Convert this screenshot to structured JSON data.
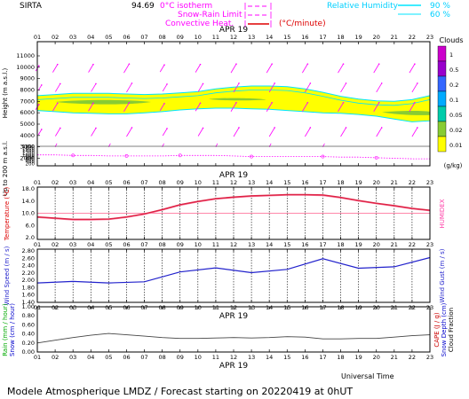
{
  "header": {
    "station": "SIRTA",
    "coords": "94.69",
    "zero_isotherm": "0°C isotherm",
    "snow_rain_limit": "Snow-Rain Limit",
    "convective_heat": "Convective Heat.",
    "convective_unit": "(°C/minute)",
    "rh_label": "Relative Humidity",
    "rh_90": "90 %",
    "rh_60": "60 %"
  },
  "footer": {
    "model": "Modele Atmospherique LMDZ / Forecast starting on 20220419 at 0hUT",
    "universal_time": "Universal Time"
  },
  "colors": {
    "cloud_yellow": "#ffff00",
    "cloud_green": "#88cc33",
    "rh_cyan": "#00e5ff",
    "wind_magenta": "#ff00ff",
    "temperature": "#dd2244",
    "humidex": "#ff88aa",
    "wind": "#2222cc",
    "rain": "#444444",
    "isotherm": "#ff00ff"
  },
  "date_label": "APR 19",
  "hours": [
    "01",
    "02",
    "03",
    "04",
    "05",
    "06",
    "07",
    "08",
    "09",
    "10",
    "11",
    "12",
    "13",
    "14",
    "15",
    "16",
    "17",
    "18",
    "19",
    "20",
    "21",
    "22",
    "23"
  ],
  "chart_data": [
    {
      "type": "heatmap",
      "panel": "clouds",
      "ylabel": "Height (m a.s.l.)",
      "ylabel2": "Up to 200 m a.s.l.",
      "y_ticks_upper": [
        "11000",
        "10000",
        "9000",
        "8000",
        "7000",
        "6000",
        "5000",
        "4000",
        "3000",
        "2000"
      ],
      "y_ticks_lower": [
        "1800",
        "1600",
        "1400",
        "1200",
        "1000",
        "800",
        "600",
        "400",
        "200"
      ],
      "legend_title": "Clouds",
      "legend_unit": "(g/kg)",
      "legend_ticks": [
        "1",
        "0.5",
        "0.2",
        "0.1",
        "0.05",
        "0.02",
        "0.01"
      ],
      "legend_colors": [
        "#cc00cc",
        "#9900cc",
        "#3366ff",
        "#00aaff",
        "#00ccaa",
        "#88cc33",
        "#ffff00"
      ],
      "cloud_top_m": [
        7500,
        7600,
        7700,
        7700,
        7700,
        7650,
        7600,
        7650,
        7750,
        7850,
        8100,
        8250,
        8350,
        8350,
        8300,
        8100,
        7800,
        7450,
        7200,
        7050,
        7000,
        7150,
        7500
      ],
      "cloud_base_m": [
        6200,
        6100,
        6000,
        5950,
        5900,
        5900,
        6000,
        6100,
        6250,
        6350,
        6400,
        6400,
        6350,
        6300,
        6200,
        6100,
        6000,
        5950,
        5850,
        5700,
        5450,
        5200,
        5300
      ],
      "isotherm_m": [
        2300,
        2300,
        2250,
        2250,
        2200,
        2200,
        2200,
        2200,
        2250,
        2250,
        2250,
        2200,
        2150,
        2150,
        2150,
        2150,
        2150,
        2100,
        2100,
        2050,
        2000,
        1950,
        1950
      ]
    },
    {
      "type": "line",
      "panel": "temperature",
      "ylabel": "Temperature (°C)",
      "ylabel2": "HUMIDEX",
      "y_ticks": [
        "18.0",
        "14.0",
        "10.0",
        "6.0",
        "2.0"
      ],
      "ylim": [
        2,
        18
      ],
      "x": [
        1,
        2,
        3,
        4,
        5,
        6,
        7,
        8,
        9,
        10,
        11,
        12,
        13,
        14,
        15,
        16,
        17,
        18,
        19,
        20,
        21,
        22,
        23
      ],
      "series": [
        {
          "values": [
            8.8,
            8.4,
            8.0,
            8.0,
            8.1,
            8.8,
            9.8,
            11.2,
            12.8,
            13.9,
            14.8,
            15.3,
            15.7,
            15.9,
            16.1,
            16.1,
            16.0,
            15.2,
            14.2,
            13.3,
            12.5,
            11.6,
            11.0
          ]
        },
        {
          "values": [
            8.6,
            8.2,
            7.8,
            7.8,
            7.9,
            8.6,
            9.6,
            11.0,
            12.6,
            13.7,
            14.6,
            15.1,
            15.5,
            15.7,
            15.9,
            15.9,
            15.8,
            15.0,
            14.0,
            13.1,
            12.3,
            11.4,
            10.8
          ]
        }
      ]
    },
    {
      "type": "line",
      "panel": "wind",
      "ylabel": "Wind Speed (m / s)",
      "ylabel2": "Wind Gust (m / s)",
      "y_ticks": [
        "2.80",
        "2.60",
        "2.40",
        "2.20",
        "2.00",
        "1.80",
        "1.60",
        "1.40"
      ],
      "ylim": [
        1.4,
        2.85
      ],
      "x": [
        1,
        3,
        5,
        7,
        9,
        11,
        13,
        15,
        17,
        19,
        21,
        23
      ],
      "series": [
        {
          "values": [
            1.93,
            1.97,
            1.93,
            1.96,
            2.23,
            2.34,
            2.21,
            2.3,
            2.59,
            2.33,
            2.37,
            2.62
          ]
        }
      ]
    },
    {
      "type": "line",
      "panel": "rain",
      "ylabel": "Rain (mm / hour)",
      "ylabel2": "Snow (cm / hour)",
      "ylabel3": "CAPE (J / g)",
      "ylabel4": "Snow Depth (cm)",
      "ylabel5": "Cloud Fraction",
      "y_ticks": [
        "1.00",
        "0.80",
        "0.60",
        "0.40",
        "0.20",
        "0.00"
      ],
      "ylim": [
        0,
        1.0
      ],
      "x": [
        1,
        2,
        3,
        4,
        5,
        6,
        7,
        8,
        9,
        10,
        11,
        12,
        13,
        14,
        15,
        16,
        17,
        18,
        19,
        20,
        21,
        22,
        23
      ],
      "series": [
        {
          "values": [
            0.2,
            0.26,
            0.32,
            0.37,
            0.41,
            0.38,
            0.35,
            0.32,
            0.3,
            0.3,
            0.31,
            0.32,
            0.31,
            0.32,
            0.34,
            0.33,
            0.29,
            0.29,
            0.3,
            0.3,
            0.33,
            0.36,
            0.38
          ]
        }
      ]
    }
  ]
}
